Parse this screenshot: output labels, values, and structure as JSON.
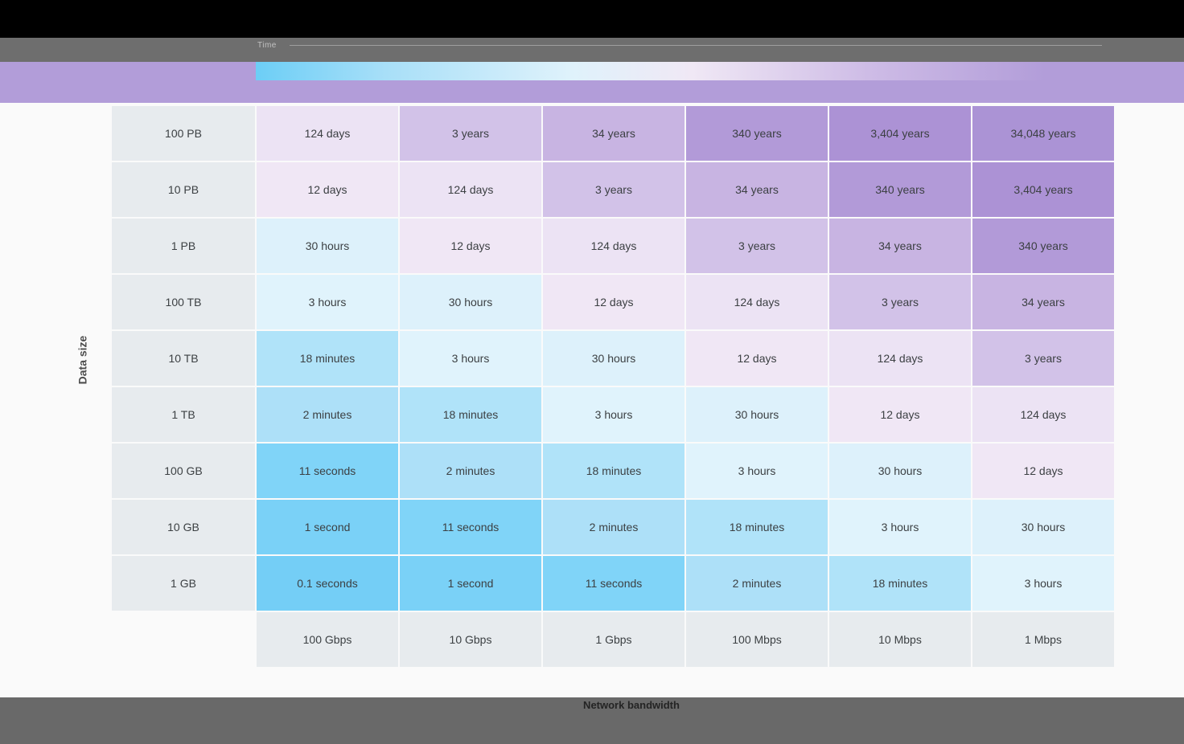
{
  "banner": {
    "legend_label": "Time"
  },
  "axes": {
    "y": "Data size",
    "x": "Network bandwidth"
  },
  "palette": {
    "top_band": "#000000",
    "toolbar_band": "#6e6e6e",
    "legend_band": "#b29dd9",
    "bottom_band": "#696969",
    "header_cell_bg": "#e7ebee",
    "cell_text": "#3c4043",
    "legend_gradient_start": "#6ccef6",
    "legend_gradient_mid": "#f0e8f5",
    "legend_gradient_end": "#b29dd9"
  },
  "chart_data": {
    "type": "heatmap",
    "row_axis_label": "Data size",
    "col_axis_label": "Network bandwidth",
    "rows": [
      "100 PB",
      "10 PB",
      "1 PB",
      "100 TB",
      "10 TB",
      "1 TB",
      "100 GB",
      "10 GB",
      "1 GB"
    ],
    "cols": [
      "100 Gbps",
      "10 Gbps",
      "1 Gbps",
      "100 Mbps",
      "10 Mbps",
      "1 Mbps"
    ],
    "values": [
      [
        "124 days",
        "3 years",
        "34 years",
        "340 years",
        "3,404 years",
        "34,048 years"
      ],
      [
        "12 days",
        "124 days",
        "3 years",
        "34 years",
        "340 years",
        "3,404 years"
      ],
      [
        "30 hours",
        "12 days",
        "124 days",
        "3 years",
        "34 years",
        "340 years"
      ],
      [
        "3 hours",
        "30 hours",
        "12 days",
        "124 days",
        "3 years",
        "34 years"
      ],
      [
        "18 minutes",
        "3 hours",
        "30 hours",
        "12 days",
        "124 days",
        "3 years"
      ],
      [
        "2 minutes",
        "18 minutes",
        "3 hours",
        "30 hours",
        "12 days",
        "124 days"
      ],
      [
        "11 seconds",
        "2 minutes",
        "18 minutes",
        "3 hours",
        "30 hours",
        "12 days"
      ],
      [
        "1 second",
        "11 seconds",
        "2 minutes",
        "18 minutes",
        "3 hours",
        "30 hours"
      ],
      [
        "0.1 seconds",
        "1 second",
        "11 seconds",
        "2 minutes",
        "18 minutes",
        "3 hours"
      ]
    ],
    "color_by_value": {
      "0.1 seconds": "#74cef6",
      "1 second": "#7ad1f7",
      "11 seconds": "#80d4f8",
      "2 minutes": "#ade0f8",
      "18 minutes": "#b0e3f9",
      "3 hours": "#e0f3fc",
      "30 hours": "#ddf1fb",
      "12 days": "#f0e7f5",
      "124 days": "#ece3f4",
      "3 years": "#d2c2e8",
      "34 years": "#c8b4e2",
      "340 years": "#b29ad8",
      "3,404 years": "#ac92d5",
      "34,048 years": "#ab93d5"
    }
  }
}
